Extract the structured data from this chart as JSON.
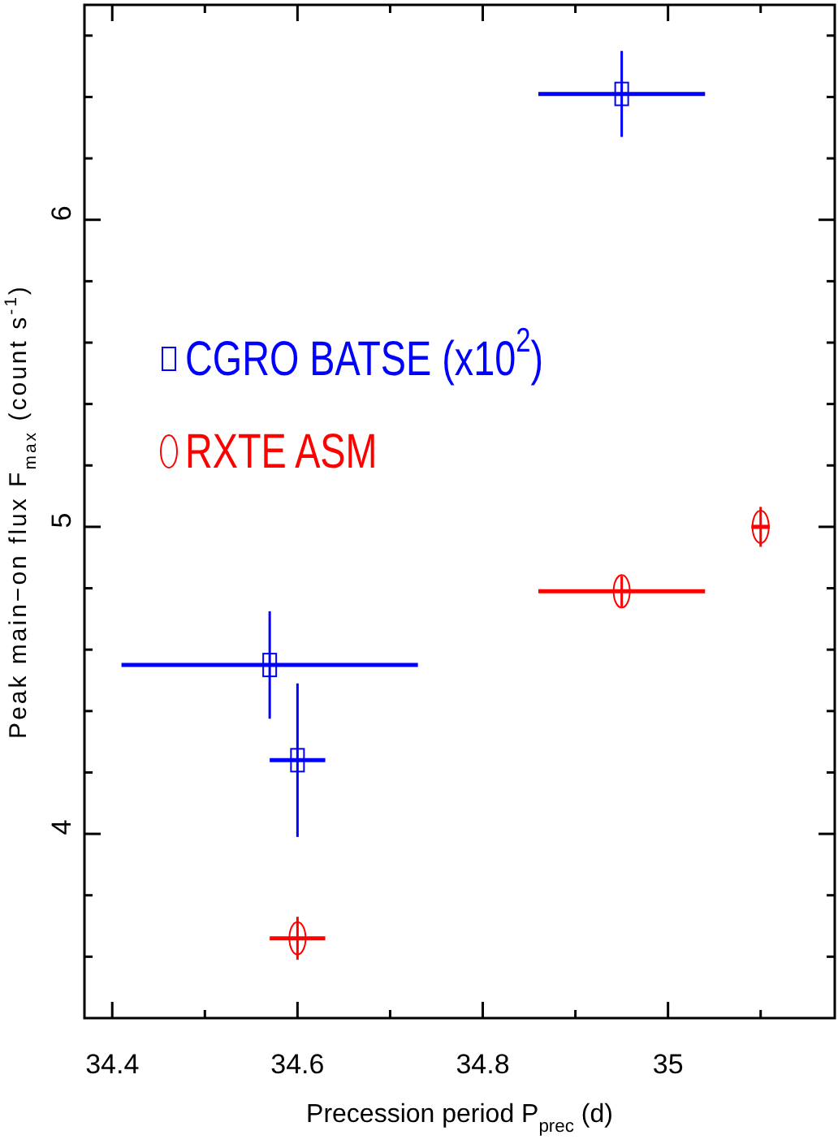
{
  "chart_data": {
    "type": "scatter",
    "xlabel": "Precession period P$_{prec}$ (d)",
    "ylabel": "Peak main−on flux F$_{max}$ (count s$^{-1}$)",
    "xlim": [
      34.37,
      35.18
    ],
    "ylim": [
      3.4,
      6.7
    ],
    "xticks": [
      34.4,
      {
        "value": 34.5,
        "label": null
      },
      34.6,
      {
        "value": 34.7,
        "label": null
      },
      34.8,
      {
        "value": 34.9,
        "label": null
      },
      35,
      {
        "value": 35.1,
        "label": null
      }
    ],
    "yticks": [
      {
        "value": 3.6,
        "label": null
      },
      {
        "value": 3.8,
        "label": null
      },
      4,
      {
        "value": 4.2,
        "label": null
      },
      {
        "value": 4.4,
        "label": null
      },
      {
        "value": 4.6,
        "label": null
      },
      {
        "value": 4.8,
        "label": null
      },
      5,
      {
        "value": 5.2,
        "label": null
      },
      {
        "value": 5.4,
        "label": null
      },
      {
        "value": 5.6,
        "label": null
      },
      {
        "value": 5.8,
        "label": null
      },
      6,
      {
        "value": 6.2,
        "label": null
      },
      {
        "value": 6.4,
        "label": null
      },
      {
        "value": 6.6,
        "label": null
      }
    ],
    "legend": "left",
    "grid": false,
    "series": [
      {
        "name": "CGRO BATSE (x10$^{2}$)",
        "color": "#0000ff",
        "marker": "square",
        "x": [
          34.95,
          34.57,
          34.6
        ],
        "values": [
          6.41,
          4.55,
          4.24
        ],
        "errors": [
          0.14,
          0.175,
          0.25
        ],
        "xerrors": [
          0.09,
          0.16,
          0.03
        ]
      },
      {
        "name": "RXTE ASM",
        "color": "#ff0000",
        "marker": "circle",
        "x": [
          34.6,
          34.95,
          35.1
        ],
        "values": [
          3.66,
          4.79,
          5.0
        ],
        "errors": [
          0.07,
          0.05,
          0.065
        ],
        "xerrors": [
          0.03,
          0.09,
          0.01
        ]
      }
    ]
  }
}
